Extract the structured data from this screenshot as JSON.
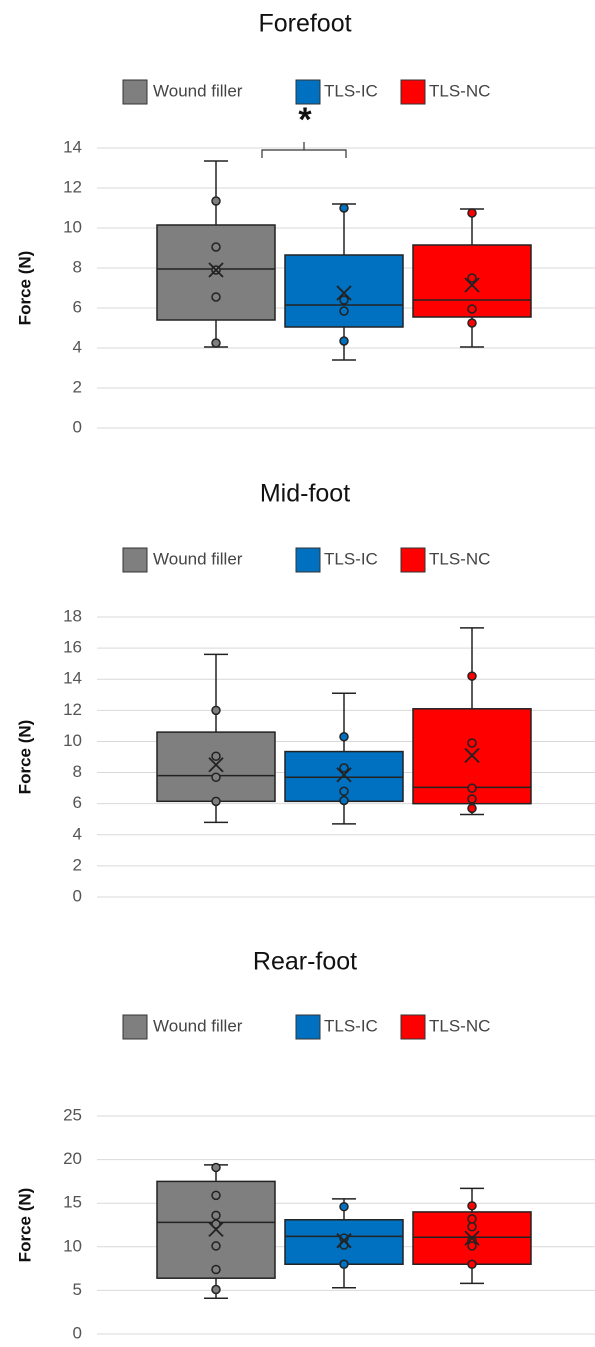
{
  "chart_data": [
    {
      "type": "box",
      "title": "Forefoot",
      "y_label": "Force (N)",
      "annotation": "*",
      "ylim": [
        0,
        14
      ],
      "yticks": [
        0,
        2,
        4,
        6,
        8,
        10,
        12,
        14
      ],
      "grid": true,
      "series": [
        {
          "name": "Wound filler",
          "color": "#7f7f7f",
          "whisker_low": 4.05,
          "q1": 5.4,
          "median": 7.95,
          "q3": 10.15,
          "whisker_high": 13.35,
          "mean": 7.9,
          "points": [
            11.35,
            9.05,
            7.9,
            6.55,
            4.25
          ]
        },
        {
          "name": "TLS-IC",
          "color": "#0070c0",
          "whisker_low": 3.4,
          "q1": 5.05,
          "median": 6.15,
          "q3": 8.65,
          "whisker_high": 11.2,
          "mean": 6.75,
          "points": [
            11.0,
            6.4,
            5.85,
            4.35
          ]
        },
        {
          "name": "TLS-NC",
          "color": "#ff0000",
          "whisker_low": 4.05,
          "q1": 5.55,
          "median": 6.4,
          "q3": 9.15,
          "whisker_high": 10.95,
          "mean": 7.15,
          "points": [
            10.75,
            7.5,
            5.95,
            5.25
          ]
        }
      ]
    },
    {
      "type": "box",
      "title": "Mid-foot",
      "y_label": "Force (N)",
      "ylim": [
        0,
        18
      ],
      "yticks": [
        0,
        2,
        4,
        6,
        8,
        10,
        12,
        14,
        16,
        18
      ],
      "grid": true,
      "series": [
        {
          "name": "Wound filler",
          "color": "#7f7f7f",
          "whisker_low": 4.8,
          "q1": 6.15,
          "median": 7.8,
          "q3": 10.6,
          "whisker_high": 15.6,
          "mean": 8.5,
          "points": [
            12.0,
            9.05,
            7.7,
            6.15
          ]
        },
        {
          "name": "TLS-IC",
          "color": "#0070c0",
          "whisker_low": 4.7,
          "q1": 6.15,
          "median": 7.7,
          "q3": 9.35,
          "whisker_high": 13.1,
          "mean": 7.85,
          "points": [
            10.3,
            8.3,
            6.8,
            6.2
          ]
        },
        {
          "name": "TLS-NC",
          "color": "#ff0000",
          "whisker_low": 5.3,
          "q1": 6.0,
          "median": 7.05,
          "q3": 12.1,
          "whisker_high": 17.3,
          "mean": 9.1,
          "points": [
            14.2,
            9.9,
            7.0,
            6.3,
            5.7
          ]
        }
      ]
    },
    {
      "type": "box",
      "title": "Rear-foot",
      "y_label": "Force (N)",
      "ylim": [
        0,
        25
      ],
      "yticks": [
        0,
        5,
        10,
        15,
        20,
        25
      ],
      "grid": true,
      "series": [
        {
          "name": "Wound filler",
          "color": "#7f7f7f",
          "whisker_low": 4.1,
          "q1": 6.4,
          "median": 12.8,
          "q3": 17.5,
          "whisker_high": 19.4,
          "mean": 12.0,
          "points": [
            19.1,
            15.9,
            13.6,
            12.6,
            10.1,
            7.4,
            5.1
          ]
        },
        {
          "name": "TLS-IC",
          "color": "#0070c0",
          "whisker_low": 5.3,
          "q1": 8.0,
          "median": 11.2,
          "q3": 13.1,
          "whisker_high": 15.5,
          "mean": 10.7,
          "points": [
            14.6,
            11.0,
            10.2,
            8.0
          ]
        },
        {
          "name": "TLS-NC",
          "color": "#ff0000",
          "whisker_low": 5.8,
          "q1": 8.0,
          "median": 11.1,
          "q3": 14.0,
          "whisker_high": 16.7,
          "mean": 11.0,
          "points": [
            14.7,
            13.2,
            12.3,
            10.7,
            10.1,
            8.0
          ]
        }
      ]
    }
  ]
}
